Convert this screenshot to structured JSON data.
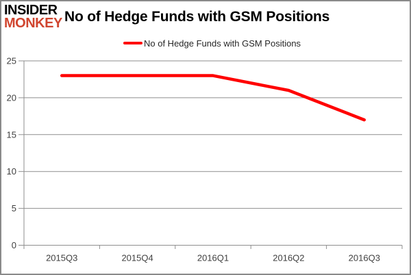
{
  "brand": {
    "line1": "INSIDER",
    "line2": "MONKEY",
    "line1_color": "#000000",
    "line2_color": "#d0452f"
  },
  "header": {
    "title": "No of Hedge Funds with GSM Positions"
  },
  "legend": {
    "label": "No of Hedge Funds with GSM Positions",
    "marker_color": "#ff0000"
  },
  "chart_data": {
    "type": "line",
    "categories": [
      "2015Q3",
      "2015Q4",
      "2016Q1",
      "2016Q2",
      "2016Q3"
    ],
    "series": [
      {
        "name": "No of Hedge Funds with GSM Positions",
        "values": [
          23,
          23,
          23,
          21,
          17
        ]
      }
    ],
    "title": "No of Hedge Funds with GSM Positions",
    "xlabel": "",
    "ylabel": "",
    "ylim": [
      0,
      25
    ],
    "yticks": [
      0,
      5,
      10,
      15,
      20,
      25
    ],
    "grid": true,
    "legend_position": "top",
    "line_color": "#ff0000",
    "line_width": 4.5,
    "axis_color": "#8e8e8e",
    "label_color": "#3f3f3f",
    "label_font_size": 13
  }
}
